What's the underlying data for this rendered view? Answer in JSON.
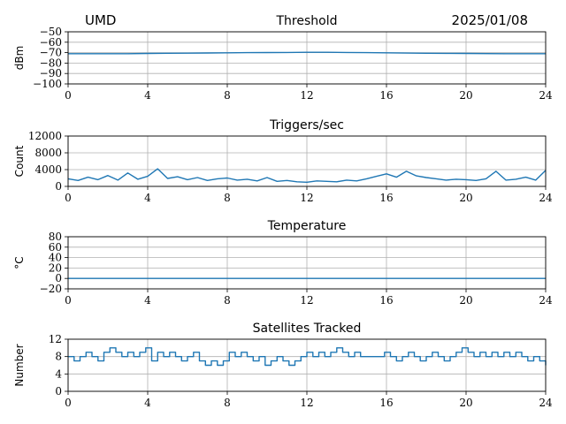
{
  "header": {
    "station": "UMD",
    "date": "2025/01/08"
  },
  "colors": {
    "series": "#1f77b4"
  },
  "chart_data": [
    {
      "type": "line",
      "title": "Threshold",
      "xlabel": "",
      "ylabel": "dBm",
      "xlim": [
        0,
        24
      ],
      "ylim": [
        -100,
        -50
      ],
      "x_ticks": [
        0,
        4,
        8,
        12,
        16,
        20,
        24
      ],
      "x_tick_labels": [
        "0",
        "4",
        "8",
        "12",
        "16",
        "20",
        "24"
      ],
      "y_ticks": [
        -100,
        -90,
        -80,
        -70,
        -60,
        -50
      ],
      "y_tick_labels": [
        "−100",
        "−90",
        "−80",
        "−70",
        "−60",
        "−50"
      ],
      "grid": true,
      "x": [
        0,
        1,
        2,
        3,
        4,
        5,
        6,
        7,
        8,
        9,
        10,
        11,
        12,
        13,
        14,
        15,
        16,
        17,
        18,
        19,
        20,
        21,
        22,
        23,
        24
      ],
      "values": [
        -71,
        -71,
        -71,
        -71,
        -70.8,
        -70.6,
        -70.5,
        -70.3,
        -70.2,
        -70,
        -69.9,
        -69.8,
        -69.7,
        -69.7,
        -69.8,
        -70,
        -70.2,
        -70.4,
        -70.6,
        -70.7,
        -70.8,
        -70.9,
        -71,
        -71,
        -71
      ]
    },
    {
      "type": "line",
      "title": "Triggers/sec",
      "xlabel": "",
      "ylabel": "Count",
      "xlim": [
        0,
        24
      ],
      "ylim": [
        0,
        12000
      ],
      "x_ticks": [
        0,
        4,
        8,
        12,
        16,
        20,
        24
      ],
      "x_tick_labels": [
        "0",
        "4",
        "8",
        "12",
        "16",
        "20",
        "24"
      ],
      "y_ticks": [
        0,
        4000,
        8000,
        12000
      ],
      "y_tick_labels": [
        "0",
        "4000",
        "8000",
        "12000"
      ],
      "grid": true,
      "x": [
        0,
        0.5,
        1,
        1.5,
        2,
        2.5,
        3,
        3.5,
        4,
        4.5,
        5,
        5.5,
        6,
        6.5,
        7,
        7.5,
        8,
        8.5,
        9,
        9.5,
        10,
        10.5,
        11,
        11.5,
        12,
        12.5,
        13,
        13.5,
        14,
        14.5,
        15,
        15.5,
        16,
        16.5,
        17,
        17.5,
        18,
        18.5,
        19,
        19.5,
        20,
        20.5,
        21,
        21.5,
        22,
        22.5,
        23,
        23.5,
        24
      ],
      "values": [
        1800,
        1400,
        2200,
        1600,
        2600,
        1500,
        3200,
        1700,
        2400,
        4200,
        1900,
        2300,
        1600,
        2100,
        1400,
        1800,
        2000,
        1500,
        1700,
        1300,
        2100,
        1200,
        1400,
        1100,
        1000,
        1300,
        1200,
        1100,
        1500,
        1300,
        1800,
        2400,
        3000,
        2200,
        3600,
        2500,
        2100,
        1800,
        1500,
        1700,
        1600,
        1400,
        1800,
        3600,
        1500,
        1700,
        2200,
        1500,
        3800
      ]
    },
    {
      "type": "line",
      "title": "Temperature",
      "xlabel": "",
      "ylabel": "°C",
      "xlim": [
        0,
        24
      ],
      "ylim": [
        -20,
        80
      ],
      "x_ticks": [
        0,
        4,
        8,
        12,
        16,
        20,
        24
      ],
      "x_tick_labels": [
        "0",
        "4",
        "8",
        "12",
        "16",
        "20",
        "24"
      ],
      "y_ticks": [
        -20,
        0,
        20,
        40,
        60,
        80
      ],
      "y_tick_labels": [
        "−20",
        "0",
        "20",
        "40",
        "60",
        "80"
      ],
      "grid": true,
      "x": [
        0,
        24
      ],
      "values": [
        0,
        0
      ]
    },
    {
      "type": "line",
      "title": "Satellites Tracked",
      "xlabel": "",
      "ylabel": "Number",
      "xlim": [
        0,
        24
      ],
      "ylim": [
        0,
        12
      ],
      "x_ticks": [
        0,
        4,
        8,
        12,
        16,
        20,
        24
      ],
      "x_tick_labels": [
        "0",
        "4",
        "8",
        "12",
        "16",
        "20",
        "24"
      ],
      "y_ticks": [
        0,
        4,
        8,
        12
      ],
      "y_tick_labels": [
        "0",
        "4",
        "8",
        "12"
      ],
      "grid": true,
      "step": true,
      "x": [
        0,
        0.3,
        0.6,
        0.9,
        1.2,
        1.5,
        1.8,
        2.1,
        2.4,
        2.7,
        3.0,
        3.3,
        3.6,
        3.9,
        4.2,
        4.5,
        4.8,
        5.1,
        5.4,
        5.7,
        6.0,
        6.3,
        6.6,
        6.9,
        7.2,
        7.5,
        7.8,
        8.1,
        8.4,
        8.7,
        9.0,
        9.3,
        9.6,
        9.9,
        10.2,
        10.5,
        10.8,
        11.1,
        11.4,
        11.7,
        12.0,
        12.3,
        12.6,
        12.9,
        13.2,
        13.5,
        13.8,
        14.1,
        14.4,
        14.7,
        15.0,
        15.3,
        15.6,
        15.9,
        16.2,
        16.5,
        16.8,
        17.1,
        17.4,
        17.7,
        18.0,
        18.3,
        18.6,
        18.9,
        19.2,
        19.5,
        19.8,
        20.1,
        20.4,
        20.7,
        21.0,
        21.3,
        21.6,
        21.9,
        22.2,
        22.5,
        22.8,
        23.1,
        23.4,
        23.7,
        24.0
      ],
      "values": [
        8,
        7,
        8,
        9,
        8,
        7,
        9,
        10,
        9,
        8,
        9,
        8,
        9,
        10,
        7,
        9,
        8,
        9,
        8,
        7,
        8,
        9,
        7,
        6,
        7,
        6,
        7,
        9,
        8,
        9,
        8,
        7,
        8,
        6,
        7,
        8,
        7,
        6,
        7,
        8,
        9,
        8,
        9,
        8,
        9,
        10,
        9,
        8,
        9,
        8,
        8,
        8,
        8,
        9,
        8,
        7,
        8,
        9,
        8,
        7,
        8,
        9,
        8,
        7,
        8,
        9,
        10,
        9,
        8,
        9,
        8,
        9,
        8,
        9,
        8,
        9,
        8,
        7,
        8,
        7,
        6
      ]
    }
  ]
}
